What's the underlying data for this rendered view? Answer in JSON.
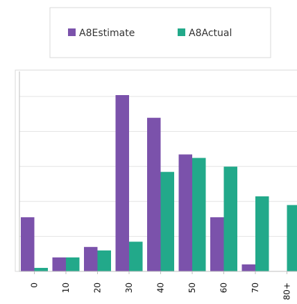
{
  "chart_data": {
    "type": "bar",
    "title": "",
    "xlabel": "",
    "ylabel": "",
    "categories": [
      "0",
      "10",
      "20",
      "30",
      "40",
      "50",
      "60",
      "70",
      "80+"
    ],
    "series": [
      {
        "name": "A8Estimate",
        "color": "#7B52AB",
        "values": [
          31,
          8,
          14,
          101,
          88,
          67,
          31,
          4,
          0
        ]
      },
      {
        "name": "A8Actual",
        "color": "#22A98A",
        "values": [
          2,
          8,
          12,
          17,
          57,
          65,
          60,
          43,
          38
        ]
      }
    ],
    "ylim": [
      0,
      110
    ],
    "grid": true,
    "legend_position": "top"
  }
}
